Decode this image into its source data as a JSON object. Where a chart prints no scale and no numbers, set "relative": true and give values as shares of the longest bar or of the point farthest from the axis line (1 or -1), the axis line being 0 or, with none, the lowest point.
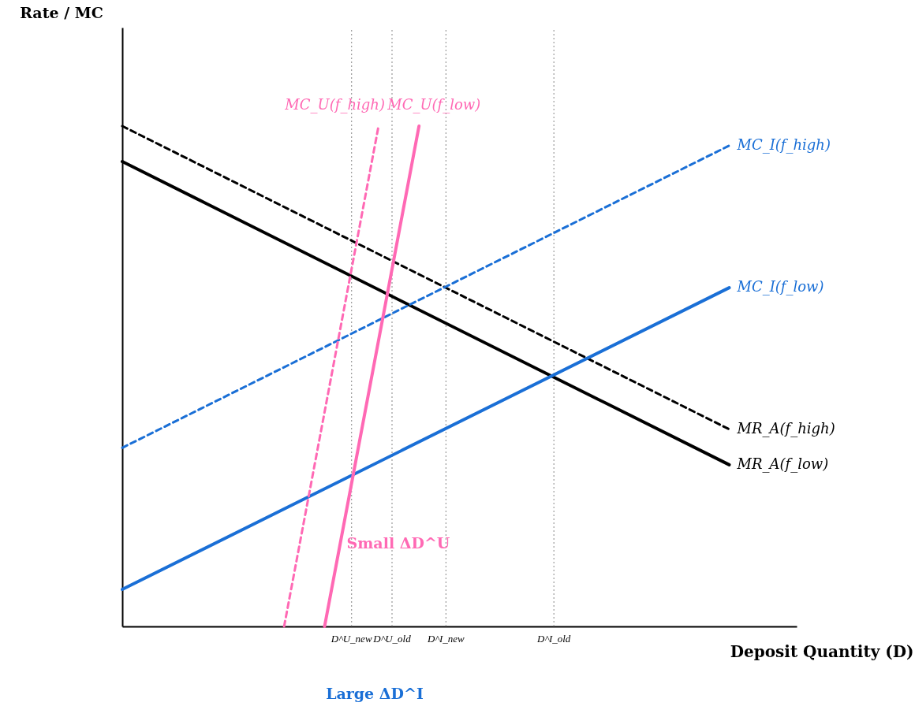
{
  "chart_data": {
    "type": "line",
    "relative": true,
    "xlabel": "Deposit Quantity (D)",
    "categories": [
      null,
      null,
      null,
      null,
      null,
      null,
      null,
      null,
      null,
      null,
      null,
      null,
      null,
      null,
      null,
      null,
      null,
      "D^U_new",
      null,
      null,
      "D^U_old",
      null,
      null,
      null,
      "D^I_new",
      null,
      null,
      null,
      null,
      null,
      null,
      null,
      "D^I_old",
      null,
      null,
      null,
      null,
      null,
      null,
      null,
      null,
      null,
      null,
      null,
      null,
      null,
      null,
      null,
      null,
      null,
      null
    ],
    "grid": "x",
    "legend": false,
    "series": [
      {
        "name": "MR_A(f_high)",
        "color": "#000000",
        "line_style": "dashed",
        "values": [
          1.0,
          null,
          null,
          null,
          null,
          null,
          null,
          null,
          null,
          null,
          null,
          null,
          null,
          null,
          null,
          null,
          null,
          null,
          null,
          null,
          null,
          null,
          null,
          null,
          null,
          null,
          null,
          null,
          null,
          null,
          null,
          null,
          null,
          null,
          null,
          null,
          null,
          null,
          null,
          null,
          null,
          null,
          null,
          null,
          null,
          0.394,
          null,
          null,
          null,
          null,
          null
        ]
      },
      {
        "name": "MR_A(f_low)",
        "color": "#000000",
        "line_style": "solid",
        "values": [
          0.929,
          null,
          null,
          null,
          null,
          null,
          null,
          null,
          null,
          null,
          null,
          null,
          null,
          null,
          null,
          null,
          null,
          null,
          null,
          null,
          null,
          null,
          null,
          null,
          null,
          null,
          null,
          null,
          null,
          null,
          null,
          null,
          null,
          null,
          null,
          null,
          null,
          null,
          null,
          null,
          null,
          null,
          null,
          null,
          null,
          0.323,
          null,
          null,
          null,
          null,
          null
        ]
      },
      {
        "name": "MC_I(f_high)",
        "color": "#1a6fd6",
        "line_style": "dashed",
        "values": [
          0.357,
          null,
          null,
          null,
          null,
          null,
          null,
          null,
          null,
          null,
          null,
          null,
          null,
          null,
          null,
          null,
          null,
          null,
          null,
          null,
          null,
          null,
          null,
          null,
          null,
          null,
          null,
          null,
          null,
          null,
          null,
          null,
          null,
          null,
          null,
          null,
          null,
          null,
          null,
          null,
          null,
          null,
          null,
          null,
          null,
          0.961,
          null,
          null,
          null,
          null,
          null
        ]
      },
      {
        "name": "MC_I(f_low)",
        "color": "#1a6fd6",
        "line_style": "solid",
        "values": [
          0.074,
          null,
          null,
          null,
          null,
          null,
          null,
          null,
          null,
          null,
          null,
          null,
          null,
          null,
          null,
          null,
          null,
          null,
          null,
          null,
          null,
          null,
          null,
          null,
          null,
          null,
          null,
          null,
          null,
          null,
          null,
          null,
          null,
          null,
          null,
          null,
          null,
          null,
          null,
          null,
          null,
          null,
          null,
          null,
          null,
          0.677,
          null,
          null,
          null,
          null,
          null
        ]
      },
      {
        "name": "MC_U(f_high)",
        "color": "#ff69b4",
        "line_style": "dashed",
        "values": [
          null,
          null,
          null,
          null,
          null,
          null,
          null,
          null,
          null,
          null,
          null,
          null,
          0,
          null,
          null,
          null,
          null,
          null,
          null,
          1.0,
          null,
          null,
          null,
          null,
          null,
          null,
          null,
          null,
          null,
          null,
          null,
          null,
          null,
          null,
          null,
          null,
          null,
          null,
          null,
          null,
          null,
          null,
          null,
          null,
          null,
          null,
          null,
          null,
          null,
          null,
          null
        ]
      },
      {
        "name": "MC_U(f_low)",
        "color": "#ff69b4",
        "line_style": "solid",
        "values": [
          null,
          null,
          null,
          null,
          null,
          null,
          null,
          null,
          null,
          null,
          null,
          null,
          null,
          null,
          null,
          0,
          null,
          null,
          null,
          null,
          null,
          null,
          1.0,
          null,
          null,
          null,
          null,
          null,
          null,
          null,
          null,
          null,
          null,
          null,
          null,
          null,
          null,
          null,
          null,
          null,
          null,
          null,
          null,
          null,
          null,
          null,
          null,
          null,
          null,
          null,
          null
        ]
      }
    ],
    "annotations": [
      "Rate / MC",
      "Small ΔD^U",
      "Large ΔD^I"
    ]
  }
}
